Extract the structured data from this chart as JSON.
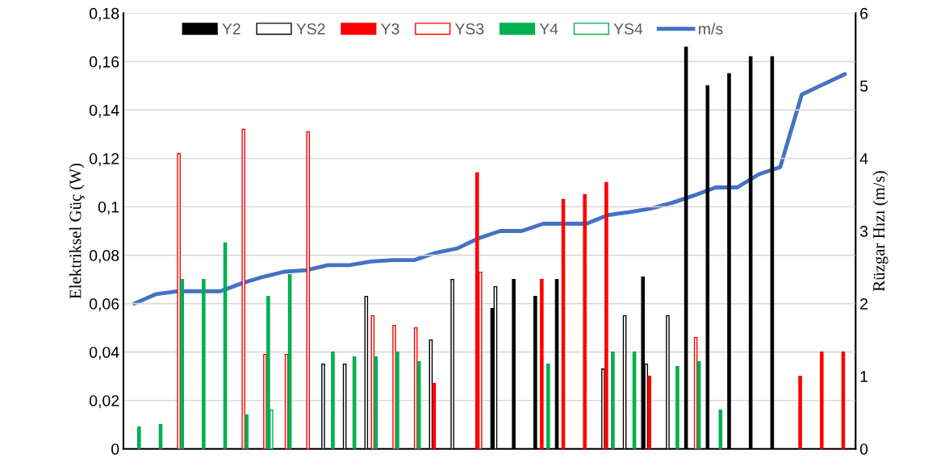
{
  "chart_data": {
    "type": "bar",
    "xlabel": null,
    "ylabel": "Elektriksel Güç (W)",
    "y2label": "Rüzgar Hızı (m/s)",
    "categories": [
      null,
      null,
      null,
      null,
      null,
      null,
      null,
      null,
      null,
      null,
      null,
      null,
      null,
      null,
      null,
      null,
      null,
      null,
      null,
      null,
      null,
      null,
      null,
      null,
      null,
      null,
      null,
      null,
      null,
      null,
      null,
      null,
      null,
      null
    ],
    "series": [
      {
        "name": "Y2",
        "color": "#000000",
        "values": [
          null,
          null,
          null,
          null,
          null,
          null,
          null,
          null,
          null,
          null,
          null,
          null,
          null,
          null,
          null,
          null,
          null,
          0.058,
          0.07,
          0.063,
          0.07,
          null,
          null,
          null,
          0.071,
          null,
          0.166,
          0.15,
          0.155,
          0.162,
          0.162,
          null,
          null,
          null
        ]
      },
      {
        "name": "YS2",
        "color": "#ffffff",
        "values": [
          null,
          null,
          null,
          null,
          null,
          null,
          null,
          null,
          null,
          0.035,
          0.035,
          0.063,
          null,
          null,
          0.045,
          0.07,
          null,
          0.067,
          null,
          null,
          null,
          null,
          0.033,
          0.055,
          0.035,
          0.055,
          null,
          null,
          null,
          null,
          null,
          null,
          null,
          null
        ]
      },
      {
        "name": "Y3",
        "color": "#ff0000",
        "values": [
          null,
          null,
          null,
          null,
          null,
          null,
          null,
          null,
          null,
          null,
          null,
          null,
          null,
          null,
          0.027,
          null,
          0.114,
          null,
          null,
          0.07,
          0.103,
          0.105,
          0.11,
          null,
          0.03,
          null,
          null,
          null,
          null,
          null,
          null,
          0.03,
          0.04,
          0.04
        ]
      },
      {
        "name": "YS3",
        "color": "#ffffff",
        "values": [
          null,
          null,
          0.122,
          null,
          null,
          0.132,
          0.039,
          0.039,
          0.131,
          null,
          null,
          0.055,
          0.051,
          0.05,
          null,
          null,
          0.073,
          null,
          null,
          null,
          null,
          null,
          null,
          null,
          null,
          null,
          0.046,
          null,
          null,
          null,
          null,
          null,
          null,
          null
        ]
      },
      {
        "name": "Y4",
        "color": "#00b050",
        "values": [
          0.009,
          0.01,
          0.07,
          0.07,
          0.085,
          0.014,
          0.063,
          0.072,
          null,
          0.04,
          0.038,
          0.038,
          0.04,
          0.036,
          null,
          null,
          null,
          null,
          null,
          0.035,
          null,
          null,
          0.04,
          0.04,
          null,
          0.034,
          0.036,
          0.016,
          null,
          null,
          null,
          null,
          null,
          null
        ]
      },
      {
        "name": "YS4",
        "color": "#ffffff",
        "values": [
          null,
          null,
          null,
          null,
          null,
          null,
          0.016,
          null,
          null,
          null,
          null,
          null,
          null,
          null,
          null,
          null,
          null,
          null,
          null,
          null,
          null,
          null,
          null,
          null,
          null,
          null,
          null,
          null,
          null,
          null,
          null,
          null,
          null,
          null
        ]
      },
      {
        "name": "m/s",
        "type": "line",
        "axis": "y2",
        "color": "#4472c4",
        "values": [
          2.0,
          2.13,
          2.17,
          2.17,
          2.17,
          2.28,
          2.37,
          2.44,
          2.46,
          2.53,
          2.53,
          2.58,
          2.6,
          2.6,
          2.7,
          2.76,
          2.9,
          3.0,
          3.0,
          3.1,
          3.1,
          3.1,
          3.22,
          3.26,
          3.31,
          3.39,
          3.49,
          3.6,
          3.6,
          3.78,
          3.88,
          4.88,
          5.02,
          5.16
        ]
      }
    ],
    "ylim": [
      0,
      0.18
    ],
    "yticks": [
      {
        "value": 0,
        "label": "0"
      },
      {
        "value": 0.02,
        "label": "0,02"
      },
      {
        "value": 0.04,
        "label": "0,04"
      },
      {
        "value": 0.06,
        "label": "0,06"
      },
      {
        "value": 0.08,
        "label": "0,08"
      },
      {
        "value": 0.1,
        "label": "0,1"
      },
      {
        "value": 0.12,
        "label": "0,12"
      },
      {
        "value": 0.14,
        "label": "0,14"
      },
      {
        "value": 0.16,
        "label": "0,16"
      },
      {
        "value": 0.18,
        "label": "0,18"
      }
    ],
    "y2lim": [
      0,
      6
    ],
    "y2ticks": [
      0,
      1,
      2,
      3,
      4,
      5,
      6
    ],
    "grid": "y",
    "legend": "top",
    "marker": "none",
    "line_style": "solid"
  }
}
